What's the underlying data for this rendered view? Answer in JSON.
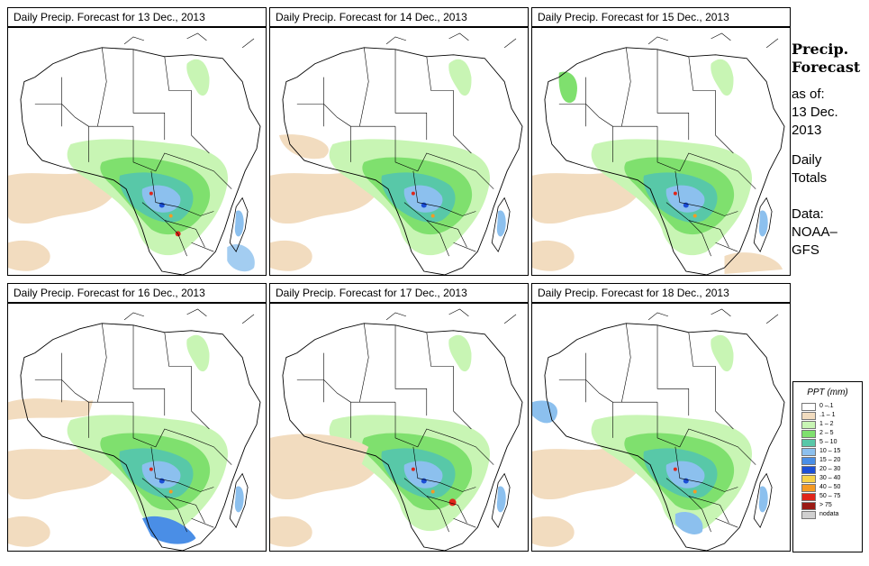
{
  "panels": [
    {
      "title": "Daily Precip. Forecast for  13 Dec., 2013"
    },
    {
      "title": "Daily Precip. Forecast for  14 Dec., 2013"
    },
    {
      "title": "Daily Precip. Forecast for  15 Dec., 2013"
    },
    {
      "title": "Daily Precip. Forecast for  16 Dec., 2013"
    },
    {
      "title": "Daily Precip. Forecast for  17 Dec., 2013"
    },
    {
      "title": "Daily Precip. Forecast for  18 Dec., 2013"
    }
  ],
  "sidebar": {
    "title_line1": "Precip.",
    "title_line2": "Forecast",
    "asof": "as of:",
    "date_line1": "13 Dec.",
    "date_line2": "2013",
    "totals_line1": "Daily",
    "totals_line2": "Totals",
    "data_line1": "Data:",
    "data_line2": "NOAA–",
    "data_line3": "GFS"
  },
  "legend": {
    "title": "PPT (mm)",
    "items": [
      {
        "label": "0 –.1",
        "color": "#ffffff"
      },
      {
        "label": ".1 – 1",
        "color": "#f2dcbf"
      },
      {
        "label": "1 – 2",
        "color": "#c8f5b4"
      },
      {
        "label": "2 – 5",
        "color": "#7fe06e"
      },
      {
        "label": "5 – 10",
        "color": "#58c8a8"
      },
      {
        "label": "10 – 15",
        "color": "#8cc0ee"
      },
      {
        "label": "15 – 20",
        "color": "#4a8ee6"
      },
      {
        "label": "20 – 30",
        "color": "#1c4fd6"
      },
      {
        "label": "30 – 40",
        "color": "#f6d24a"
      },
      {
        "label": "40 – 50",
        "color": "#f59a23"
      },
      {
        "label": "50 – 75",
        "color": "#e0251a"
      },
      {
        "label": "> 75",
        "color": "#9a1a14"
      },
      {
        "label": "nodata",
        "color": "#d0d0d0"
      }
    ]
  },
  "colors": {
    "tan": "#f2dcbf",
    "light_green": "#c8f5b4",
    "green": "#7fe06e",
    "teal": "#58c8a8",
    "light_blue": "#8cc0ee",
    "blue": "#4a8ee6",
    "dark_blue": "#1c4fd6",
    "red": "#e0251a",
    "orange": "#f59a23"
  }
}
